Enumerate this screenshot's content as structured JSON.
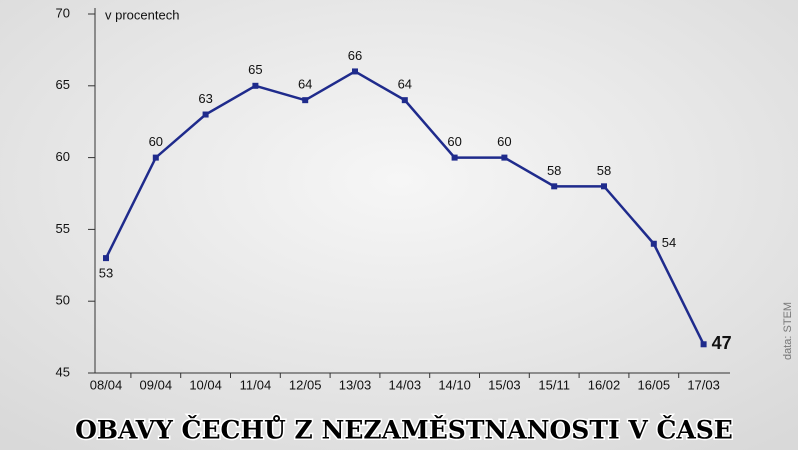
{
  "chart_data": {
    "type": "line",
    "title": "OBAVY ČECHŮ Z NEZAMĚSTNANOSTI V ČASE",
    "y_label": "v procentech",
    "source": "data: STEM",
    "categories": [
      "08/04",
      "09/04",
      "10/04",
      "11/04",
      "12/05",
      "13/03",
      "14/03",
      "14/10",
      "15/03",
      "15/11",
      "16/02",
      "16/05",
      "17/03"
    ],
    "series": [
      {
        "color": "#1f2b8c",
        "values": [
          53,
          60,
          63,
          65,
          64,
          66,
          64,
          60,
          60,
          58,
          58,
          54,
          47
        ]
      }
    ],
    "ylim": [
      45,
      70
    ],
    "yticks": [
      45,
      50,
      55,
      60,
      65,
      70
    ]
  }
}
